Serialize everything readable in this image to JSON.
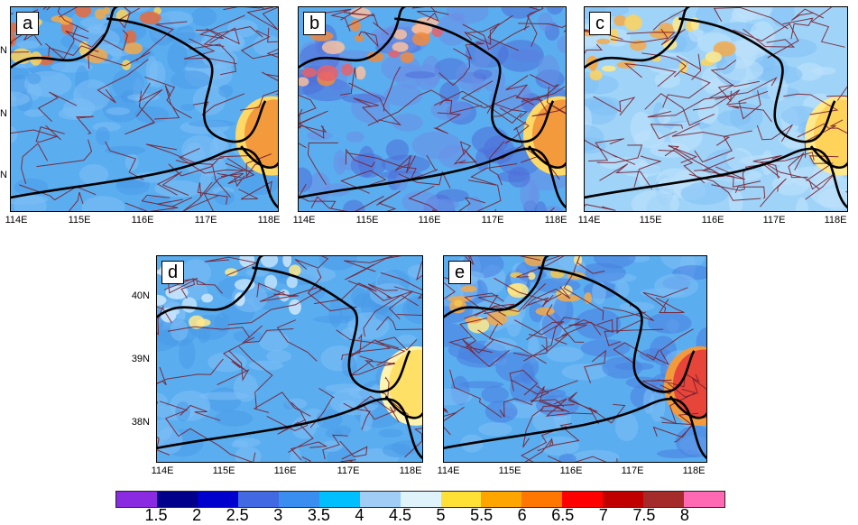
{
  "panels": [
    {
      "id": "a",
      "label": "a",
      "palette": [
        "#5aaef0",
        "#7fbff5",
        "#4a9ae8",
        "#f5c84a",
        "#ef8a3a"
      ],
      "bump": "#f39a3c",
      "bumpEdge": "#ffd966",
      "hot": [
        "#f3a94a",
        "#ffd25a",
        "#e86a3a"
      ]
    },
    {
      "id": "b",
      "label": "b",
      "palette": [
        "#5aaef0",
        "#6b8fe6",
        "#4f6fd9",
        "#f5c84a",
        "#ef7a8a"
      ],
      "bump": "#f39a3c",
      "bumpEdge": "#ffd966",
      "hot": [
        "#f08a40",
        "#e8626a",
        "#f8c0a0"
      ]
    },
    {
      "id": "c",
      "label": "c",
      "palette": [
        "#9fd4f8",
        "#bfe2fb",
        "#7fbff5",
        "#f5d84a",
        "#f3a94a"
      ],
      "bump": "#ffd25a",
      "bumpEdge": "#ffe98a",
      "hot": [
        "#ffd25a",
        "#f3a94a",
        "#ffe98a"
      ]
    },
    {
      "id": "d",
      "label": "d",
      "palette": [
        "#5aaef0",
        "#7fbff5",
        "#4a9ae8",
        "#cfe8fb",
        "#ffe98a"
      ],
      "bump": "#ffe066",
      "bumpEdge": "#fff3b0",
      "hot": [
        "#ffe98a",
        "#cfe8fb",
        "#bfe2fb"
      ]
    },
    {
      "id": "e",
      "label": "e",
      "palette": [
        "#5aaef0",
        "#7fbff5",
        "#4a7fe0",
        "#f5d84a",
        "#f3a94a"
      ],
      "bump": "#e8453a",
      "bumpEdge": "#f39a3c",
      "hot": [
        "#f5c84a",
        "#f3a94a",
        "#ffe98a"
      ]
    }
  ],
  "x_ticks": [
    "114E",
    "115E",
    "116E",
    "117E",
    "118E"
  ],
  "y_ticks": [
    "40N",
    "39N",
    "38N"
  ],
  "colorbar": {
    "colors": [
      "#8a2be2",
      "#00008b",
      "#0000cd",
      "#4169e1",
      "#3a8ef0",
      "#00bfff",
      "#a0cdf5",
      "#dff3fb",
      "#ffe135",
      "#ffa500",
      "#ff7700",
      "#ff0000",
      "#c00000",
      "#a52a2a",
      "#ff69b4"
    ],
    "labels": [
      "1.5",
      "2",
      "2.5",
      "3",
      "3.5",
      "4",
      "4.5",
      "5",
      "5.5",
      "6",
      "6.5",
      "7",
      "7.5",
      "8"
    ]
  }
}
